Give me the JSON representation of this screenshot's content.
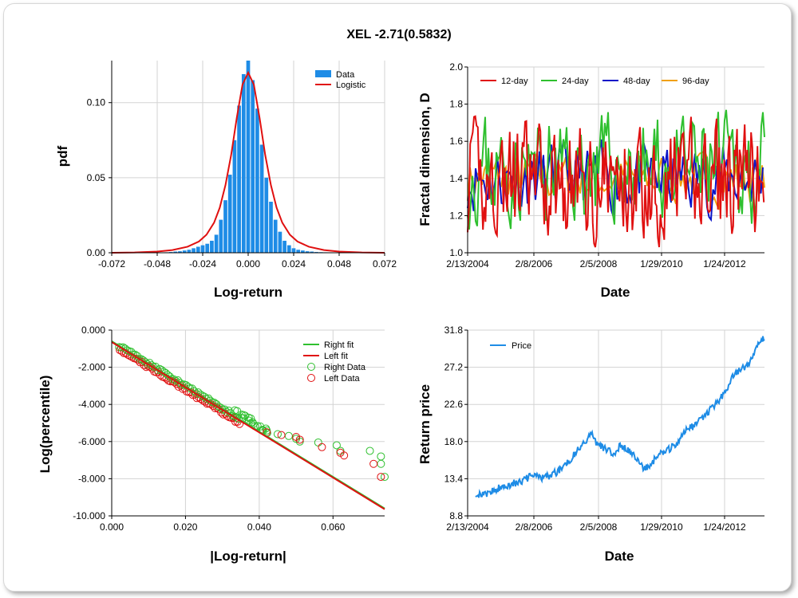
{
  "title": "XEL -2.71(0.5832)",
  "colors": {
    "blue": "#1e8ce6",
    "red": "#e01010",
    "green": "#2fc02f",
    "navy": "#0a14c8",
    "orange": "#f0a010"
  },
  "chart_data": [
    {
      "type": "bar",
      "ylabel": "pdf",
      "xlabel": "Log-return",
      "xticks": [
        "-0.072",
        "-0.048",
        "-0.024",
        "0.000",
        "0.024",
        "0.048",
        "0.072"
      ],
      "yticks": [
        "0.00",
        "0.05",
        "0.10"
      ],
      "xlim": [
        -0.072,
        0.072
      ],
      "ylim": [
        0,
        0.128
      ],
      "legend": [
        "Data",
        "Logistic"
      ],
      "bin_width": 0.0024,
      "bins_x": [
        -0.0432,
        -0.0408,
        -0.0384,
        -0.036,
        -0.0336,
        -0.0312,
        -0.0288,
        -0.0264,
        -0.024,
        -0.0216,
        -0.0192,
        -0.0168,
        -0.0144,
        -0.012,
        -0.0096,
        -0.0072,
        -0.0048,
        -0.0024,
        0.0,
        0.0024,
        0.0048,
        0.0072,
        0.0096,
        0.012,
        0.0144,
        0.0168,
        0.0192,
        0.0216,
        0.024,
        0.0264,
        0.0288,
        0.0312,
        0.0336,
        0.036,
        0.0384,
        0.0408,
        0.0432
      ],
      "bins_y": [
        0.0003,
        0.0005,
        0.0008,
        0.001,
        0.0015,
        0.002,
        0.003,
        0.004,
        0.005,
        0.006,
        0.008,
        0.012,
        0.022,
        0.035,
        0.052,
        0.075,
        0.098,
        0.119,
        0.128,
        0.115,
        0.096,
        0.072,
        0.05,
        0.034,
        0.022,
        0.014,
        0.008,
        0.005,
        0.003,
        0.002,
        0.0015,
        0.001,
        0.0008,
        0.0005,
        0.0004,
        0.0003,
        0.0002
      ],
      "fit_x": [
        -0.072,
        -0.06,
        -0.048,
        -0.04,
        -0.032,
        -0.026,
        -0.022,
        -0.018,
        -0.015,
        -0.012,
        -0.009,
        -0.006,
        -0.003,
        0.0,
        0.003,
        0.006,
        0.009,
        0.012,
        0.015,
        0.018,
        0.022,
        0.026,
        0.032,
        0.04,
        0.048,
        0.06,
        0.072
      ],
      "fit_y": [
        0.0,
        0.0002,
        0.0008,
        0.0018,
        0.004,
        0.0075,
        0.012,
        0.02,
        0.03,
        0.045,
        0.065,
        0.09,
        0.112,
        0.12,
        0.112,
        0.09,
        0.065,
        0.045,
        0.03,
        0.02,
        0.012,
        0.0075,
        0.004,
        0.0018,
        0.0008,
        0.0002,
        0.0
      ]
    },
    {
      "type": "line",
      "ylabel": "Fractal dimension, D",
      "xlabel": "Date",
      "xticks": [
        "2/13/2004",
        "2/8/2006",
        "2/5/2008",
        "1/29/2010",
        "1/24/2012"
      ],
      "yticks": [
        "1.0",
        "1.2",
        "1.4",
        "1.6",
        "1.8",
        "2.0"
      ],
      "ylim": [
        1.0,
        2.0
      ],
      "legend": [
        "12-day",
        "24-day",
        "48-day",
        "96-day"
      ]
    },
    {
      "type": "scatter",
      "ylabel": "Log(percentile)",
      "xlabel": "|Log-return|",
      "xticks": [
        "0.000",
        "0.020",
        "0.040",
        "0.060"
      ],
      "yticks": [
        "0.000",
        "-2.000",
        "-4.000",
        "-6.000",
        "-8.000",
        "-10.000"
      ],
      "xlim": [
        0,
        0.074
      ],
      "ylim": [
        -10,
        0
      ],
      "legend": [
        "Right fit",
        "Left fit",
        "Right Data",
        "Left Data"
      ],
      "right_tail": [
        [
          0.045,
          -5.6
        ],
        [
          0.048,
          -5.7
        ],
        [
          0.05,
          -5.85
        ],
        [
          0.051,
          -6.0
        ],
        [
          0.056,
          -6.05
        ],
        [
          0.061,
          -6.2
        ],
        [
          0.062,
          -6.5
        ],
        [
          0.07,
          -6.5
        ],
        [
          0.073,
          -6.8
        ],
        [
          0.073,
          -7.2
        ],
        [
          0.074,
          -7.9
        ]
      ],
      "left_tail": [
        [
          0.042,
          -5.5
        ],
        [
          0.046,
          -5.65
        ],
        [
          0.05,
          -5.75
        ],
        [
          0.051,
          -5.9
        ],
        [
          0.057,
          -6.3
        ],
        [
          0.062,
          -6.6
        ],
        [
          0.063,
          -6.75
        ],
        [
          0.071,
          -7.2
        ],
        [
          0.073,
          -7.9
        ]
      ],
      "fit_line": [
        [
          0,
          -0.6
        ],
        [
          0.074,
          -9.6
        ]
      ]
    },
    {
      "type": "line",
      "ylabel": "Return price",
      "xlabel": "Date",
      "xticks": [
        "2/13/2004",
        "2/8/2006",
        "2/5/2008",
        "1/29/2010",
        "1/24/2012"
      ],
      "yticks": [
        "8.8",
        "13.4",
        "18.0",
        "22.6",
        "27.2",
        "31.8"
      ],
      "ylim": [
        8.8,
        31.8
      ],
      "legend": [
        "Price"
      ],
      "series_anchor": [
        [
          0,
          11.6
        ],
        [
          0.03,
          11.3
        ],
        [
          0.05,
          11.8
        ],
        [
          0.1,
          12.5
        ],
        [
          0.15,
          13.0
        ],
        [
          0.2,
          13.8
        ],
        [
          0.24,
          13.5
        ],
        [
          0.28,
          14.2
        ],
        [
          0.32,
          15.5
        ],
        [
          0.35,
          16.8
        ],
        [
          0.38,
          18.0
        ],
        [
          0.4,
          19.0
        ],
        [
          0.42,
          17.8
        ],
        [
          0.45,
          17.0
        ],
        [
          0.48,
          16.5
        ],
        [
          0.5,
          17.5
        ],
        [
          0.53,
          16.8
        ],
        [
          0.56,
          16.0
        ],
        [
          0.58,
          14.5
        ],
        [
          0.6,
          15.0
        ],
        [
          0.62,
          15.8
        ],
        [
          0.64,
          16.5
        ],
        [
          0.67,
          17.0
        ],
        [
          0.7,
          18.0
        ],
        [
          0.73,
          19.5
        ],
        [
          0.76,
          20.0
        ],
        [
          0.8,
          21.5
        ],
        [
          0.83,
          22.5
        ],
        [
          0.86,
          24.0
        ],
        [
          0.89,
          26.0
        ],
        [
          0.92,
          27.0
        ],
        [
          0.94,
          27.5
        ],
        [
          0.96,
          28.5
        ],
        [
          0.98,
          30.0
        ],
        [
          1.0,
          31.0
        ]
      ]
    }
  ]
}
